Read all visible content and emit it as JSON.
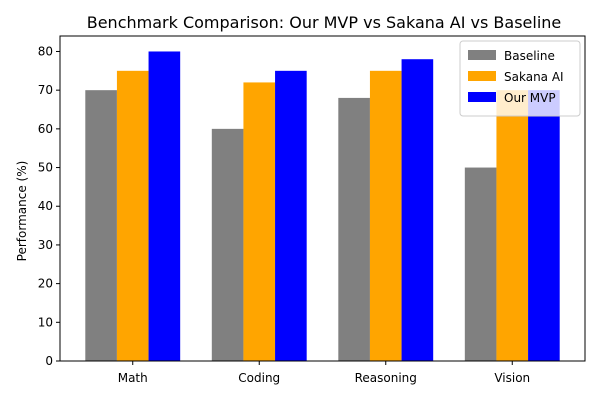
{
  "chart_data": {
    "type": "bar",
    "title": "Benchmark Comparison: Our MVP vs Sakana AI vs Baseline",
    "xlabel": "",
    "ylabel": "Performance (%)",
    "categories": [
      "Math",
      "Coding",
      "Reasoning",
      "Vision"
    ],
    "series": [
      {
        "name": "Baseline",
        "color": "#808080",
        "values": [
          70,
          60,
          68,
          50
        ]
      },
      {
        "name": "Sakana AI",
        "color": "#ffa500",
        "values": [
          75,
          72,
          75,
          70
        ]
      },
      {
        "name": "Our MVP",
        "color": "#0000ff",
        "values": [
          80,
          75,
          78,
          70
        ]
      }
    ],
    "ylim": [
      0,
      84
    ],
    "yticks": [
      "0",
      "10",
      "20",
      "30",
      "40",
      "50",
      "60",
      "70",
      "80"
    ],
    "grid": false,
    "legend": "top-right"
  }
}
